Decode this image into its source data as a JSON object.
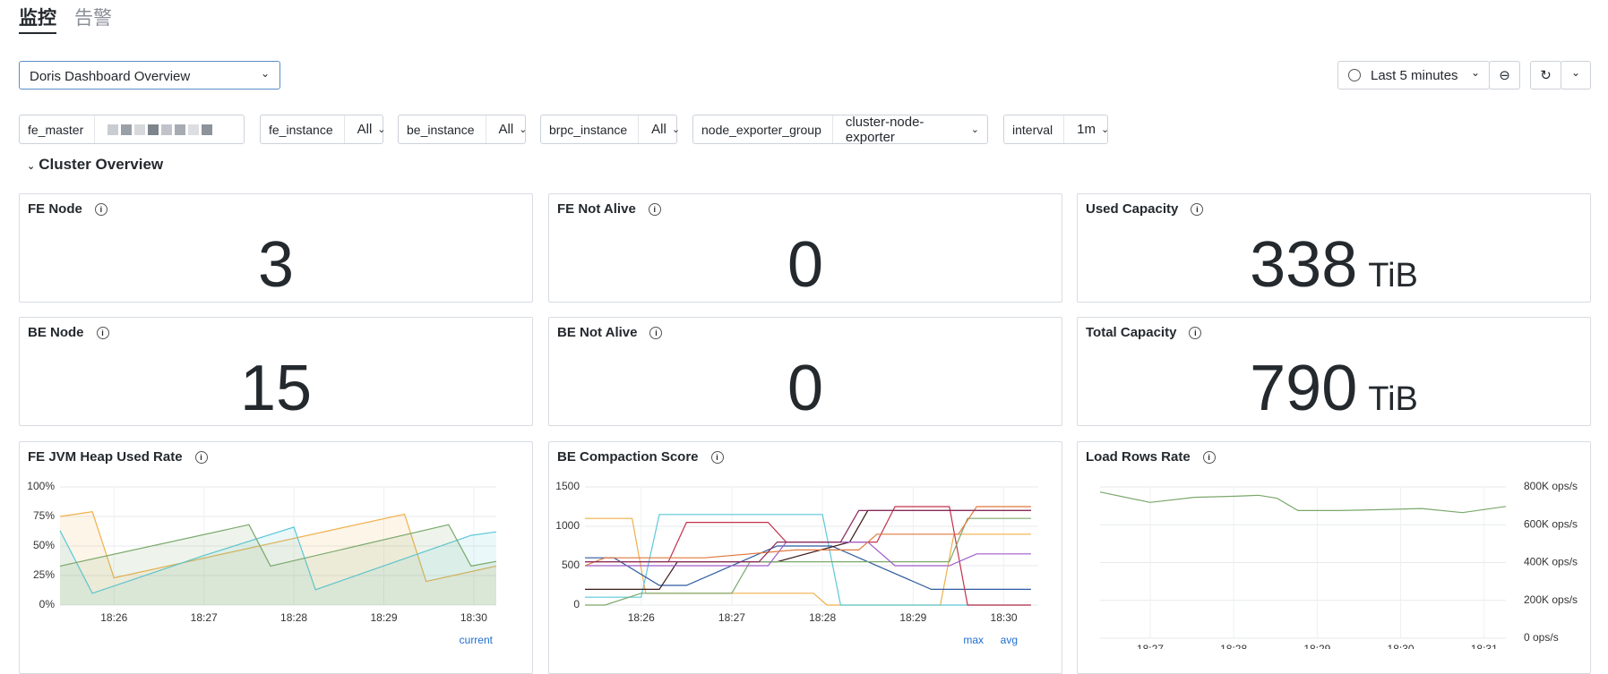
{
  "tabs": [
    "监控",
    "告警"
  ],
  "dashboard": "Doris Dashboard Overview",
  "time_range": "Last 5 minutes",
  "filters": [
    {
      "label": "fe_master"
    },
    {
      "label": "fe_instance",
      "value": "All"
    },
    {
      "label": "be_instance",
      "value": "All"
    },
    {
      "label": "brpc_instance",
      "value": "All"
    },
    {
      "label": "node_exporter_group",
      "value": "cluster-node-exporter"
    },
    {
      "label": "interval",
      "value": "1m"
    }
  ],
  "section": "Cluster Overview",
  "stats": [
    {
      "title": "FE Node",
      "value": 3
    },
    {
      "title": "FE Not Alive",
      "value": 0
    },
    {
      "title": "Used Capacity",
      "value": 338,
      "unit": "TiB"
    },
    {
      "title": "BE Node",
      "value": 15
    },
    {
      "title": "BE Not Alive",
      "value": 0
    },
    {
      "title": "Total Capacity",
      "value": 790,
      "unit": "TiB"
    }
  ],
  "chart_data": [
    {
      "type": "line",
      "title": "FE JVM Heap Used Rate",
      "fill": true,
      "legend_labels": [
        "current"
      ],
      "xlim": [
        25.4,
        30.25
      ],
      "xticks": [
        {
          "value": 26,
          "label": "18:26"
        },
        {
          "value": 27,
          "label": "18:27"
        },
        {
          "value": 28,
          "label": "18:28"
        },
        {
          "value": 29,
          "label": "18:29"
        },
        {
          "value": 30,
          "label": "18:30"
        }
      ],
      "ylim": [
        0,
        100
      ],
      "yticks": [
        {
          "value": 0,
          "label": "0%"
        },
        {
          "value": 25,
          "label": "25%"
        },
        {
          "value": 50,
          "label": "50%"
        },
        {
          "value": 75,
          "label": "75%"
        },
        {
          "value": 100,
          "label": "100%"
        }
      ],
      "series": [
        {
          "color": "#f0b04a",
          "x": [
            25.4,
            25.76,
            26,
            29.23,
            29.47,
            30.25
          ],
          "values": [
            75,
            79,
            23,
            77,
            20,
            33
          ]
        },
        {
          "color": "#5bc8d9",
          "x": [
            25.4,
            25.76,
            27,
            28,
            28.24,
            29.97,
            30.25
          ],
          "values": [
            63,
            10,
            42,
            66,
            13,
            59,
            62
          ]
        },
        {
          "color": "#7aa86b",
          "x": [
            25.4,
            27.5,
            27.74,
            29.72,
            29.97,
            30.25
          ],
          "values": [
            33,
            68,
            33,
            68,
            33,
            37
          ]
        }
      ]
    },
    {
      "type": "line",
      "title": "BE Compaction Score",
      "fill": false,
      "legend_labels": [
        "max",
        "avg"
      ],
      "xlim": [
        25.38,
        30.38
      ],
      "xticks": [
        {
          "value": 26,
          "label": "18:26"
        },
        {
          "value": 27,
          "label": "18:27"
        },
        {
          "value": 28,
          "label": "18:28"
        },
        {
          "value": 29,
          "label": "18:29"
        },
        {
          "value": 30,
          "label": "18:30"
        }
      ],
      "ylim": [
        0,
        1500
      ],
      "yticks": [
        0,
        500,
        1000,
        1500
      ],
      "series": [
        {
          "color": "#f0b04a",
          "x": [
            25.38,
            25.9,
            26.05,
            27.9,
            28.05,
            29.3,
            29.45,
            30.3
          ],
          "values": [
            1100,
            1100,
            150,
            150,
            0,
            0,
            900,
            900
          ]
        },
        {
          "color": "#5bc8d9",
          "x": [
            25.38,
            26.0,
            26.2,
            28.0,
            28.2,
            30.3
          ],
          "values": [
            100,
            100,
            1150,
            1150,
            0,
            0
          ]
        },
        {
          "color": "#2c5aa0",
          "x": [
            25.38,
            25.7,
            26.2,
            26.5,
            27.5,
            28.1,
            29.2,
            29.4,
            30.3
          ],
          "values": [
            600,
            600,
            250,
            250,
            750,
            750,
            200,
            200,
            200
          ]
        },
        {
          "color": "#c4314b",
          "x": [
            25.38,
            26.3,
            26.5,
            27.4,
            27.6,
            28.6,
            28.8,
            29.4,
            29.6,
            30.3
          ],
          "values": [
            550,
            550,
            1050,
            1050,
            800,
            800,
            1250,
            1250,
            0,
            0
          ]
        },
        {
          "color": "#3d1a1a",
          "x": [
            25.38,
            26.2,
            26.4,
            27.5,
            28.3,
            28.5,
            30.3
          ],
          "values": [
            200,
            200,
            550,
            550,
            800,
            1200,
            1200
          ]
        },
        {
          "color": "#7aa86b",
          "x": [
            25.38,
            25.6,
            26.0,
            27.0,
            27.2,
            28.3,
            28.5,
            29.4,
            29.6,
            30.3
          ],
          "values": [
            0,
            0,
            150,
            150,
            550,
            550,
            550,
            550,
            1100,
            1100
          ]
        },
        {
          "color": "#a05cc8",
          "x": [
            25.38,
            26.6,
            27.4,
            27.6,
            28.5,
            28.8,
            29.4,
            29.7,
            30.3
          ],
          "values": [
            500,
            500,
            500,
            800,
            800,
            500,
            500,
            650,
            650
          ]
        },
        {
          "color": "#e0783c",
          "x": [
            25.38,
            25.6,
            26.7,
            27.7,
            28.4,
            28.6,
            29.5,
            29.7,
            30.3
          ],
          "values": [
            500,
            600,
            600,
            700,
            700,
            900,
            900,
            1250,
            1250
          ]
        },
        {
          "color": "#8b2a5a",
          "x": [
            25.38,
            27.3,
            27.5,
            28.2,
            28.4,
            29.5,
            30.3
          ],
          "values": [
            550,
            550,
            800,
            800,
            1200,
            1200,
            1200
          ]
        }
      ]
    },
    {
      "type": "line",
      "title": "Load Rows Rate",
      "fill": false,
      "legend_labels": [],
      "xlim": [
        26.4,
        31.26
      ],
      "xticks": [
        {
          "value": 27,
          "label": "18:27"
        },
        {
          "value": 28,
          "label": "18:28"
        },
        {
          "value": 29,
          "label": "18:29"
        },
        {
          "value": 30,
          "label": "18:30"
        },
        {
          "value": 31,
          "label": "18:31"
        }
      ],
      "ylim": [
        0,
        800000
      ],
      "yticks": [
        {
          "value": 0,
          "label": "0 ops/s"
        },
        {
          "value": 200000,
          "label": "200K ops/s"
        },
        {
          "value": 400000,
          "label": "400K ops/s"
        },
        {
          "value": 600000,
          "label": "600K ops/s"
        },
        {
          "value": 800000,
          "label": "800K ops/s"
        }
      ],
      "series": [
        {
          "color": "#7aa86b",
          "x": [
            26.4,
            27.0,
            27.53,
            28.02,
            28.3,
            28.52,
            28.77,
            29.26,
            29.75,
            30.25,
            30.74,
            31.26
          ],
          "values": [
            773000,
            718000,
            745000,
            751000,
            756000,
            740000,
            675000,
            675000,
            680000,
            686000,
            664000,
            697000
          ]
        }
      ]
    }
  ]
}
